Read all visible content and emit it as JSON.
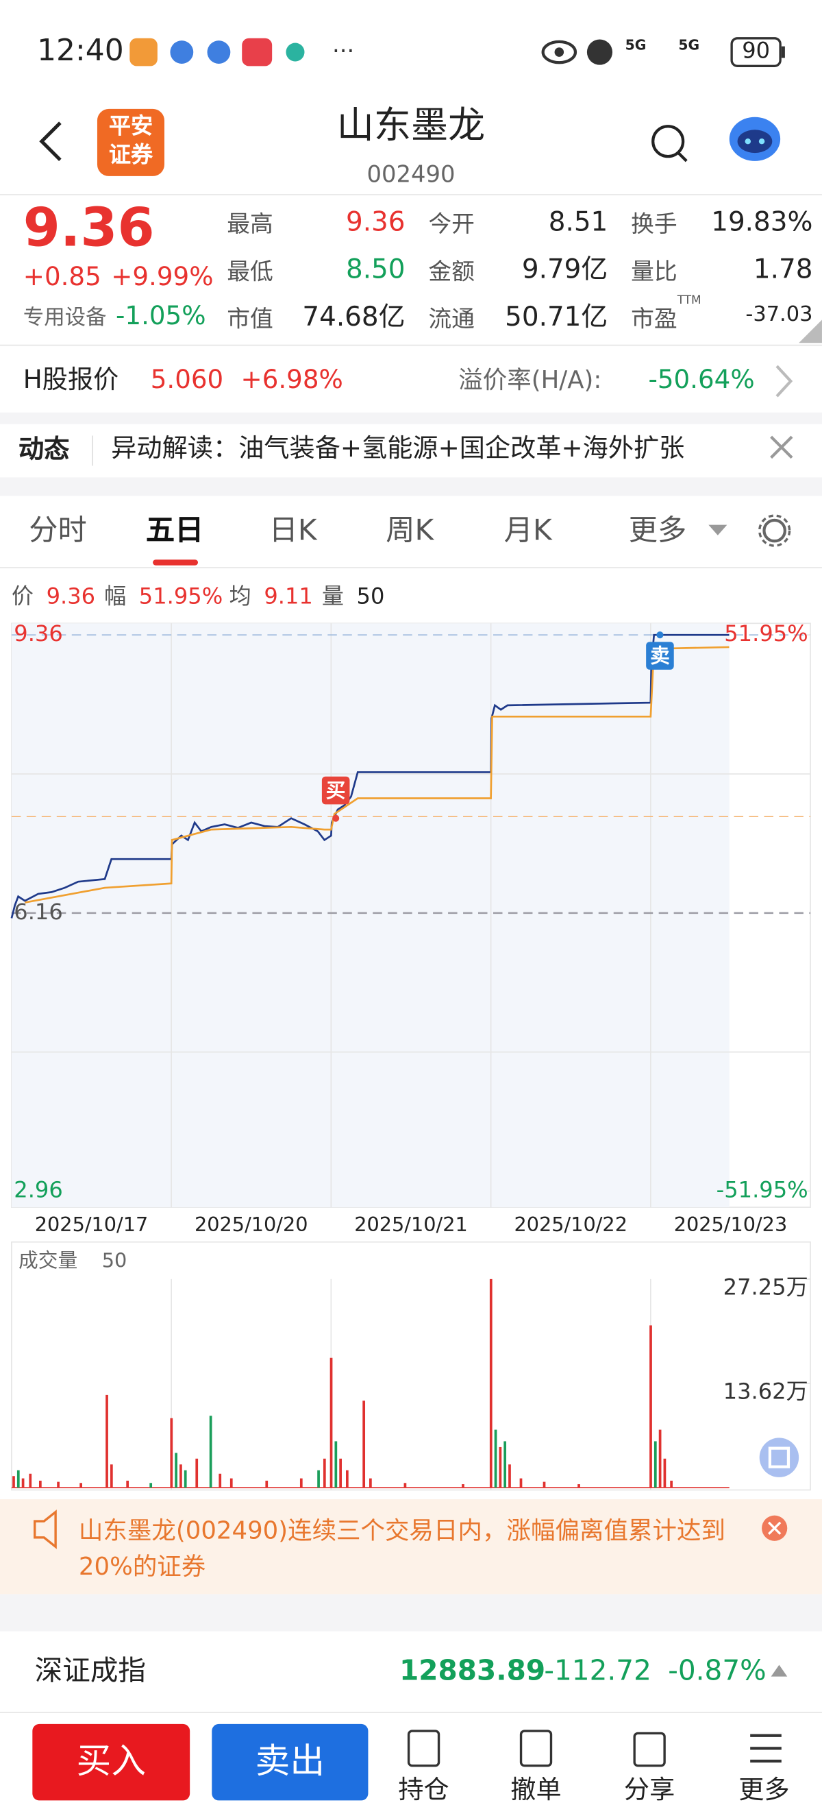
{
  "status_bar": {
    "time": "12:40",
    "network": [
      "5G",
      "5G"
    ],
    "battery": "90"
  },
  "header": {
    "broker": [
      "平安",
      "证券"
    ],
    "title": "山东墨龙",
    "code": "002490"
  },
  "quote": {
    "price": "9.36",
    "change": "+0.85",
    "change_pct": "+9.99%",
    "sector": "专用设备",
    "sector_pct": "-1.05%",
    "fields": [
      {
        "label": "最高",
        "value": "9.36"
      },
      {
        "label": "今开",
        "value": "8.51"
      },
      {
        "label": "换手",
        "value": "19.83%"
      },
      {
        "label": "最低",
        "value": "8.50"
      },
      {
        "label": "金额",
        "value": "9.79亿"
      },
      {
        "label": "量比",
        "value": "1.78"
      },
      {
        "label": "市值",
        "value": "74.68亿"
      },
      {
        "label": "流通",
        "value": "50.71亿"
      },
      {
        "label": "市盈",
        "sup": "TTM",
        "value": "-37.03"
      }
    ]
  },
  "h_share": {
    "label": "H股报价",
    "price": "5.060",
    "pct": "+6.98%",
    "premium_label": "溢价率(H/A):",
    "premium": "-50.64%"
  },
  "news": {
    "tag": "动态",
    "text": "异动解读：油气装备+氢能源+国企改革+海外扩张"
  },
  "tabs": {
    "items": [
      "分时",
      "五日",
      "日K",
      "周K",
      "月K",
      "更多"
    ],
    "active": 1
  },
  "chart_data": [
    {
      "type": "line",
      "legend_info": [
        {
          "label": "价",
          "value": "9.36"
        },
        {
          "label": "幅",
          "value": "51.95%"
        },
        {
          "label": "均",
          "value": "9.11"
        },
        {
          "label": "量",
          "value": "50"
        }
      ],
      "categories": [
        "2025/10/17",
        "2025/10/20",
        "2025/10/21",
        "2025/10/22",
        "2025/10/23"
      ],
      "xlim": [
        0,
        1200
      ],
      "ylim": [
        2.96,
        9.36
      ],
      "yticks": [
        9.36,
        6.16,
        2.96
      ],
      "y2lim": [
        -51.95,
        51.95
      ],
      "y2ticks": [
        {
          "value": 51.95,
          "label": "51.95%"
        },
        {
          "value": -51.95,
          "label": "-51.95%"
        }
      ],
      "reference_line": 7.27,
      "series": [
        {
          "name": "价",
          "color": "#1f3a8a",
          "x": [
            0,
            5,
            10,
            20,
            40,
            60,
            80,
            100,
            140,
            150,
            240,
            241,
            255,
            265,
            275,
            285,
            300,
            320,
            340,
            360,
            380,
            400,
            420,
            440,
            460,
            470,
            480,
            481,
            490,
            500,
            510,
            520,
            720,
            721,
            726,
            735,
            745,
            960,
            961,
            965,
            1078
          ],
          "values": [
            6.1,
            6.25,
            6.35,
            6.3,
            6.38,
            6.4,
            6.45,
            6.52,
            6.55,
            6.78,
            6.78,
            6.95,
            7.05,
            7.0,
            7.2,
            7.1,
            7.15,
            7.18,
            7.14,
            7.2,
            7.16,
            7.15,
            7.25,
            7.18,
            7.1,
            7.0,
            7.05,
            7.2,
            7.35,
            7.4,
            7.5,
            7.78,
            7.78,
            8.4,
            8.55,
            8.5,
            8.55,
            8.58,
            9.0,
            9.36,
            9.36
          ]
        },
        {
          "name": "均",
          "color": "#f0a030",
          "x": [
            20,
            140,
            240,
            241,
            300,
            420,
            470,
            480,
            485,
            520,
            720,
            722,
            960,
            965,
            1078
          ],
          "values": [
            6.28,
            6.45,
            6.5,
            7.0,
            7.12,
            7.15,
            7.12,
            7.12,
            7.3,
            7.48,
            7.48,
            8.42,
            8.42,
            9.2,
            9.22
          ]
        }
      ],
      "markers": [
        {
          "label": "买",
          "x": 487,
          "value": 7.25,
          "color": "#e8443a"
        },
        {
          "label": "卖",
          "x": 974,
          "value": 9.36,
          "color": "#2a7fd4"
        }
      ]
    },
    {
      "type": "bar",
      "title": "成交量",
      "latest": "50",
      "xlim": [
        0,
        1200
      ],
      "ylim": [
        0,
        27.25
      ],
      "yticks": [
        {
          "value": 27.25,
          "label": "27.25万"
        },
        {
          "value": 13.62,
          "label": "13.62万"
        }
      ],
      "x": [
        3,
        10,
        17,
        28,
        43,
        70,
        104,
        143,
        150,
        174,
        209,
        240,
        247,
        254,
        261,
        278,
        299,
        313,
        330,
        383,
        435,
        461,
        470,
        480,
        487,
        494,
        504,
        529,
        539,
        591,
        678,
        720,
        727,
        734,
        741,
        748,
        765,
        800,
        852,
        960,
        967,
        974,
        981,
        991
      ],
      "values": [
        1.51,
        2.27,
        1.21,
        1.82,
        0.91,
        0.76,
        0.61,
        12.11,
        3.03,
        0.91,
        0.61,
        9.08,
        4.54,
        3.03,
        2.27,
        3.79,
        9.39,
        1.82,
        1.21,
        0.91,
        1.21,
        2.27,
        3.79,
        16.96,
        6.06,
        3.79,
        2.27,
        11.36,
        1.21,
        0.61,
        0.45,
        27.25,
        7.57,
        5.3,
        6.06,
        3.03,
        1.21,
        0.76,
        0.45,
        21.2,
        6.06,
        7.57,
        3.79,
        0.91
      ],
      "colors": [
        "#e0312f",
        "#1a9e5a",
        "#e0312f",
        "#e0312f",
        "#e0312f",
        "#e0312f",
        "#e0312f",
        "#e0312f",
        "#e0312f",
        "#e0312f",
        "#1a9e5a",
        "#e0312f",
        "#1a9e5a",
        "#e0312f",
        "#1a9e5a",
        "#e0312f",
        "#1a9e5a",
        "#e0312f",
        "#e0312f",
        "#e0312f",
        "#e0312f",
        "#1a9e5a",
        "#e0312f",
        "#e0312f",
        "#1a9e5a",
        "#e0312f",
        "#e0312f",
        "#e0312f",
        "#e0312f",
        "#e0312f",
        "#e0312f",
        "#e0312f",
        "#1a9e5a",
        "#e0312f",
        "#1a9e5a",
        "#e0312f",
        "#e0312f",
        "#e0312f",
        "#e0312f",
        "#e0312f",
        "#1a9e5a",
        "#e0312f",
        "#e0312f",
        "#e0312f"
      ]
    }
  ],
  "alert": {
    "text": "山东墨龙(002490)连续三个交易日内，涨幅偏离值累计达到20%的证券"
  },
  "index": {
    "name": "深证成指",
    "value": "12883.89",
    "change": "-112.72",
    "pct": "-0.87%"
  },
  "bottom_bar": {
    "buy": "买入",
    "sell": "卖出",
    "tools": [
      "持仓",
      "撤单",
      "分享",
      "更多"
    ]
  }
}
